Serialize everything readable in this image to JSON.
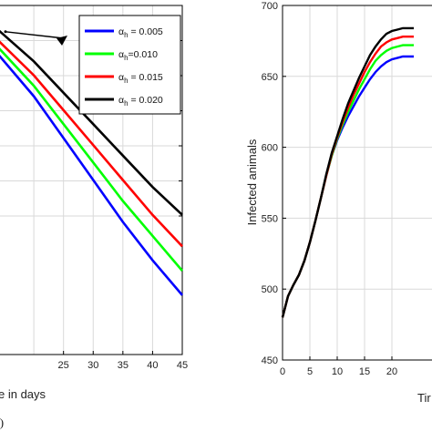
{
  "chart_data": [
    {
      "type": "line",
      "panel_label": "a)",
      "xlabel": "e in days",
      "ylabel": "",
      "xlim": [
        14,
        45
      ],
      "ylim": [
        0,
        1
      ],
      "xticks": [
        25,
        30,
        35,
        40,
        45
      ],
      "ytick_labels": [],
      "grid": true,
      "legend": {
        "placement": "top-right",
        "entries": [
          {
            "prefix": "α",
            "sub": "h",
            "rest": " = 0.005",
            "color": "#0000ff"
          },
          {
            "prefix": "α",
            "sub": "h",
            "rest": "=0.010",
            "color": "#00ff00"
          },
          {
            "prefix": "α",
            "sub": "h",
            "rest": " = 0.015",
            "color": "#ff0000"
          },
          {
            "prefix": "α",
            "sub": "h",
            "rest": " = 0.020",
            "color": "#000000"
          }
        ]
      },
      "x": [
        14,
        20,
        25,
        30,
        35,
        40,
        45
      ],
      "series": [
        {
          "color": "#0000ff",
          "values": [
            0.86,
            0.74,
            0.62,
            0.5,
            0.38,
            0.27,
            0.17
          ]
        },
        {
          "color": "#00ff00",
          "values": [
            0.88,
            0.77,
            0.66,
            0.55,
            0.44,
            0.34,
            0.24
          ]
        },
        {
          "color": "#ff0000",
          "values": [
            0.9,
            0.8,
            0.7,
            0.6,
            0.5,
            0.4,
            0.31
          ]
        },
        {
          "color": "#000000",
          "values": [
            0.93,
            0.84,
            0.75,
            0.66,
            0.57,
            0.48,
            0.4
          ]
        }
      ]
    },
    {
      "type": "line",
      "xlabel": "Tir",
      "ylabel": "Infected animals",
      "xlim": [
        0,
        30
      ],
      "ylim": [
        450,
        700
      ],
      "xticks": [
        0,
        5,
        10,
        15,
        20
      ],
      "yticks": [
        450,
        500,
        550,
        600,
        650,
        700
      ],
      "grid": true,
      "x": [
        0,
        1,
        2,
        3,
        4,
        5,
        6,
        7,
        8,
        9,
        10,
        11,
        12,
        13,
        14,
        15,
        16,
        17,
        18,
        19,
        20,
        21,
        22,
        23,
        24
      ],
      "series": [
        {
          "color": "#0000ff",
          "values": [
            480,
            495,
            503,
            510,
            520,
            533,
            548,
            564,
            580,
            594,
            605,
            614,
            622,
            629,
            636,
            642,
            648,
            653,
            657,
            660,
            662,
            663,
            664,
            664,
            664
          ]
        },
        {
          "color": "#00ff00",
          "values": [
            480,
            495,
            503,
            510,
            520,
            533,
            548,
            564,
            580,
            594,
            606,
            616,
            625,
            633,
            641,
            648,
            655,
            661,
            665,
            668,
            670,
            671,
            672,
            672,
            672
          ]
        },
        {
          "color": "#ff0000",
          "values": [
            480,
            495,
            503,
            510,
            520,
            533,
            548,
            564,
            580,
            595,
            607,
            618,
            628,
            637,
            645,
            653,
            660,
            666,
            671,
            674,
            676,
            677,
            678,
            678,
            678
          ]
        },
        {
          "color": "#000000",
          "values": [
            480,
            495,
            503,
            510,
            520,
            533,
            548,
            564,
            581,
            596,
            608,
            620,
            631,
            640,
            649,
            657,
            665,
            671,
            676,
            680,
            682,
            683,
            684,
            684,
            684
          ]
        }
      ]
    }
  ]
}
